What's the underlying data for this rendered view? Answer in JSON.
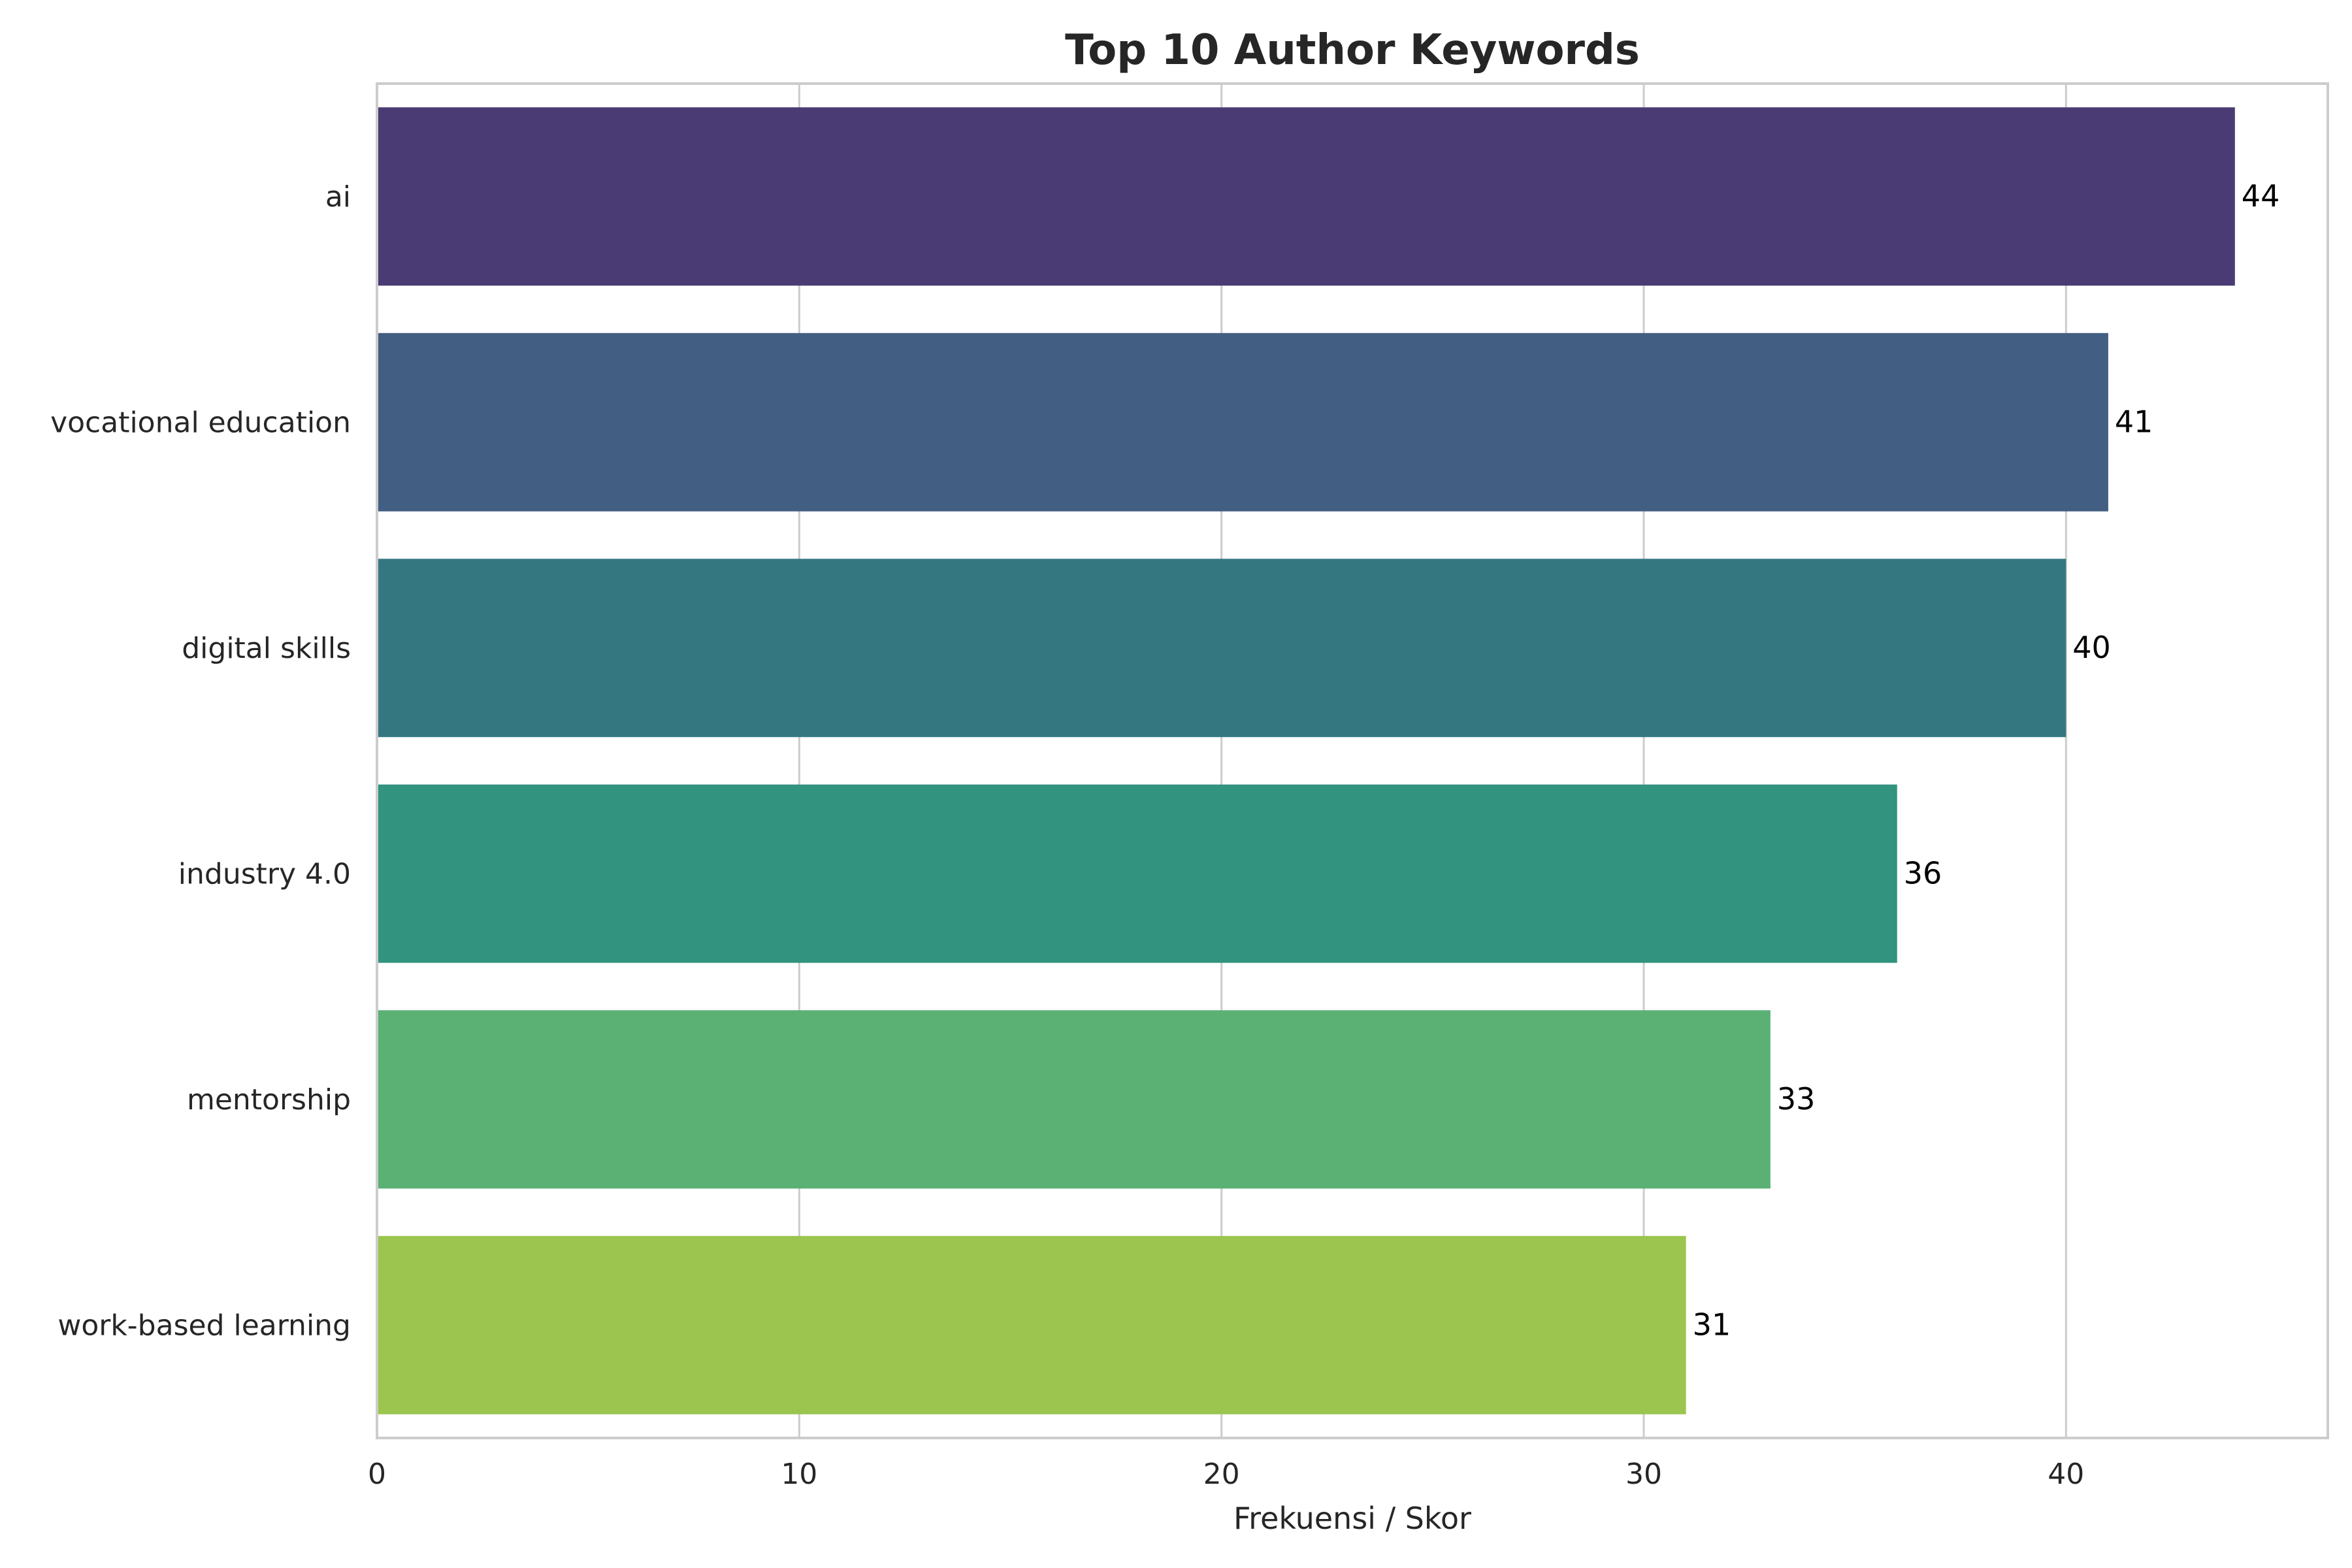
{
  "chart_data": {
    "type": "bar",
    "orientation": "horizontal",
    "title": "Top 10 Author Keywords",
    "xlabel": "Frekuensi / Skor",
    "ylabel": "",
    "xlim": [
      0,
      46.2
    ],
    "xticks": [
      0,
      10,
      20,
      30,
      40
    ],
    "grid": true,
    "categories": [
      "ai",
      "vocational education",
      "digital skills",
      "industry 4.0",
      "mentorship",
      "work-based learning"
    ],
    "values": [
      44,
      41,
      40,
      36,
      33,
      31
    ],
    "colors": [
      "#4a3b74",
      "#425e83",
      "#357781",
      "#32937f",
      "#5bb174",
      "#9bc54e"
    ]
  }
}
